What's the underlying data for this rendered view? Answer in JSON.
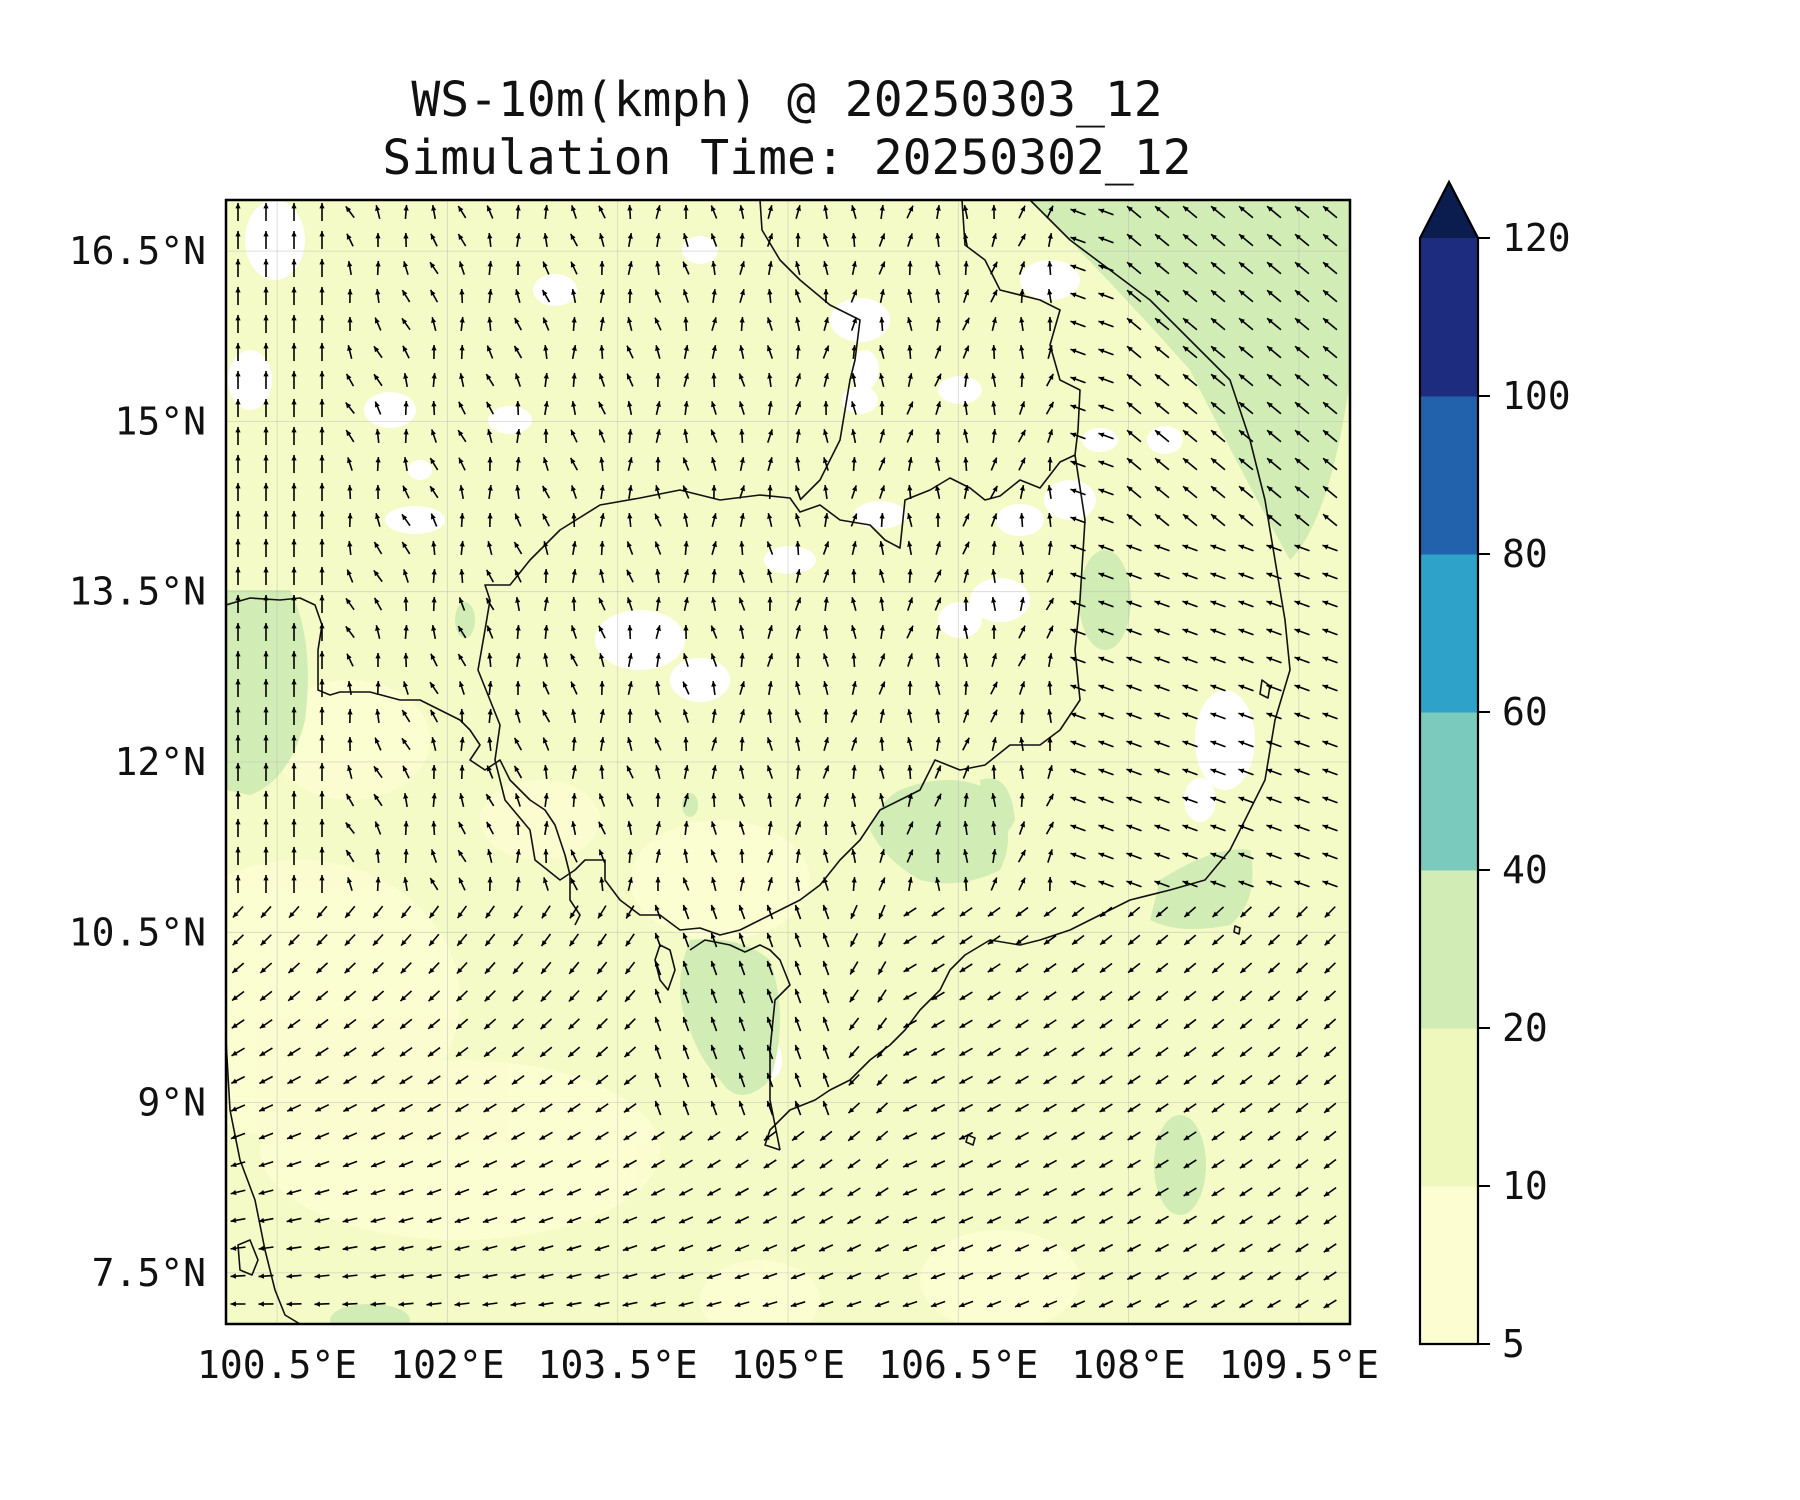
{
  "figure": {
    "title_line1": "WS-10m(kmph) @ 20250303_12",
    "title_line2": "Simulation Time: 20250302_12"
  },
  "map": {
    "extent_lon": [
      100.05,
      109.95
    ],
    "extent_lat": [
      7.05,
      16.95
    ],
    "lon_ticks": [
      100.5,
      102,
      103.5,
      105,
      106.5,
      108,
      109.5
    ],
    "lon_tick_labels": [
      "100.5°E",
      "102°E",
      "103.5°E",
      "105°E",
      "106.5°E",
      "108°E",
      "109.5°E"
    ],
    "lat_ticks": [
      16.5,
      15,
      13.5,
      12,
      10.5,
      9,
      7.5
    ],
    "lat_tick_labels": [
      "16.5°N",
      "15°N",
      "13.5°N",
      "12°N",
      "10.5°N",
      "9°N",
      "7.5°N"
    ],
    "gridlines": true
  },
  "colorbar": {
    "levels": [
      5,
      10,
      20,
      40,
      60,
      80,
      100,
      120
    ],
    "tick_labels": [
      "5",
      "10",
      "20",
      "40",
      "60",
      "80",
      "100",
      "120"
    ],
    "colors": [
      "#fcfed2",
      "#eef8bc",
      "#d1ecb4",
      "#7acbbd",
      "#2fa2c9",
      "#2262ac",
      "#1e2c80"
    ],
    "extend_color": "#0b1c4f",
    "extend": "max"
  },
  "field": {
    "background_color": "#f4fbc6",
    "calm_color": "#ffffff",
    "strong_color": "#d1ecb4",
    "arrow_color": "#000000"
  }
}
